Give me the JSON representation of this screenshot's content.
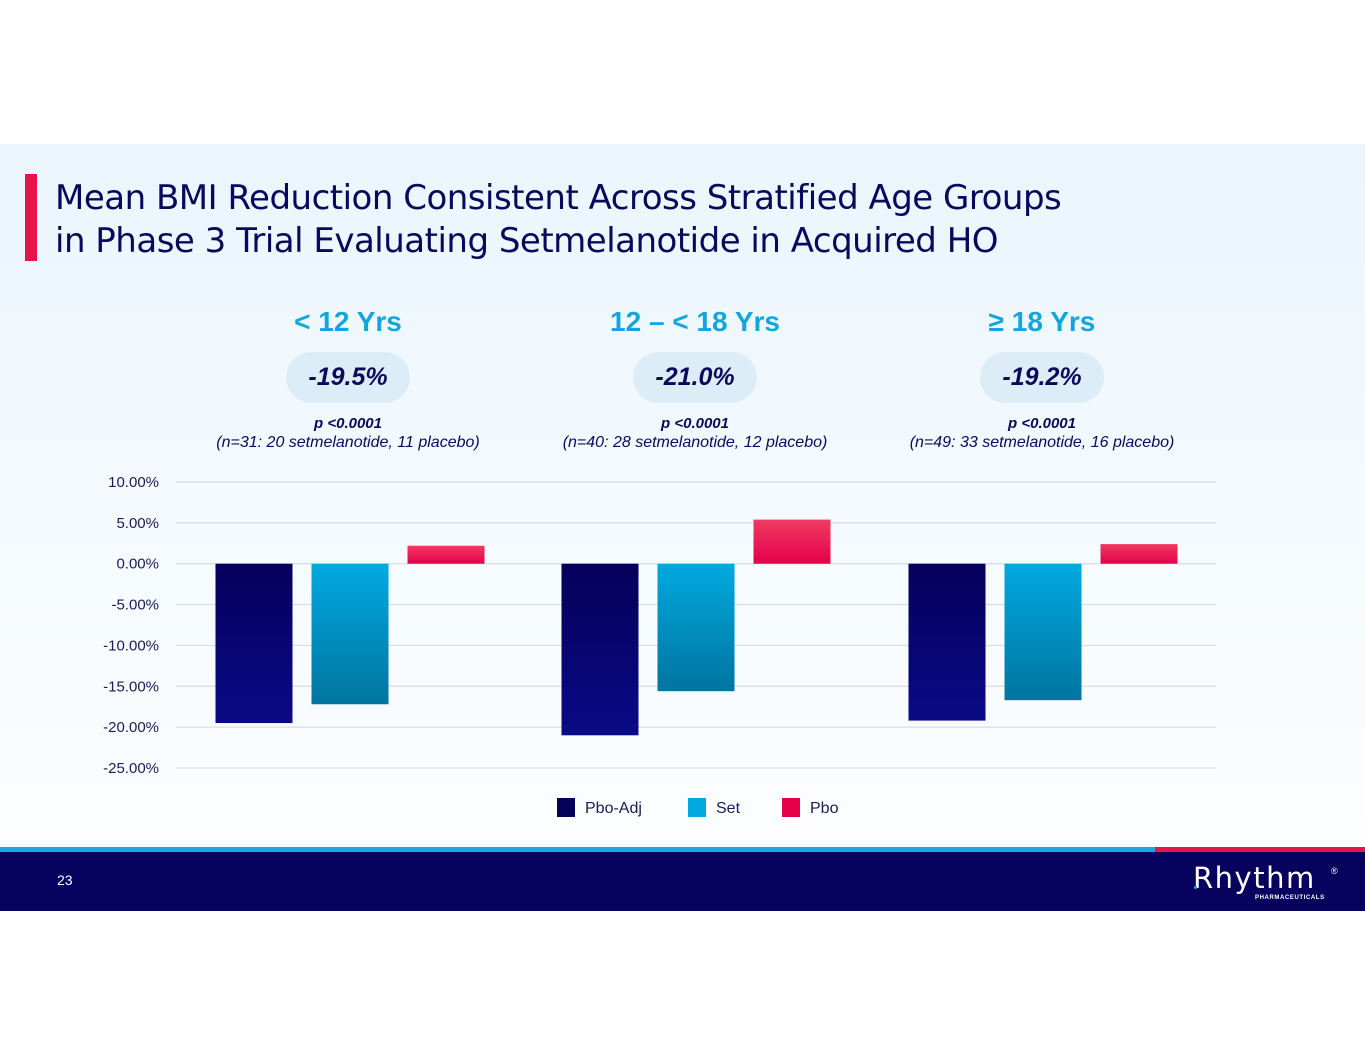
{
  "slide": {
    "title_lines": [
      "Mean BMI Reduction Consistent Across Stratified Age Groups",
      "in Phase 3 Trial Evaluating Setmelanotide in Acquired HO"
    ],
    "page_number": "23",
    "logo": {
      "name": "Rhythm",
      "registered": "®",
      "subtitle": "PHARMACEUTICALS"
    }
  },
  "groups": [
    {
      "age": "< 12 Yrs",
      "effect": "-19.5%",
      "p_value": "p <0.0001",
      "n_text": "(n=31: 20 setmelanotide, 11 placebo)"
    },
    {
      "age": "12 – < 18 Yrs",
      "effect": "-21.0%",
      "p_value": "p <0.0001",
      "n_text": "(n=40: 28 setmelanotide, 12 placebo)"
    },
    {
      "age": "≥ 18 Yrs",
      "effect": "-19.2%",
      "p_value": "p <0.0001",
      "n_text": "(n=49: 33 setmelanotide, 16 placebo)"
    }
  ],
  "colors": {
    "accent_red": "#e5144b",
    "accent_cyan": "#13a6dc",
    "navy": "#06025e",
    "pbo_adj": [
      "#05005a",
      "#0a0a86"
    ],
    "set": [
      "#00a9e0",
      "#00759f"
    ],
    "pbo": [
      "#f03a63",
      "#e5004a"
    ]
  },
  "chart_data": {
    "type": "bar",
    "title": "",
    "xlabel": "",
    "ylabel": "",
    "categories": [
      "< 12 Yrs",
      "12 – < 18 Yrs",
      "≥ 18 Yrs"
    ],
    "series": [
      {
        "name": "Pbo-Adj",
        "values": [
          -19.5,
          -21.0,
          -19.2
        ]
      },
      {
        "name": "Set",
        "values": [
          -17.2,
          -15.6,
          -16.7
        ]
      },
      {
        "name": "Pbo",
        "values": [
          2.2,
          5.4,
          2.4
        ]
      }
    ],
    "ylim": [
      -25,
      10
    ],
    "yticks": [
      10,
      5,
      0,
      -5,
      -10,
      -15,
      -20,
      -25
    ],
    "ytick_labels": [
      "10.00%",
      "5.00%",
      "0.00%",
      "-5.00%",
      "-10.00%",
      "-15.00%",
      "-20.00%",
      "-25.00%"
    ],
    "grid": true,
    "legend": {
      "placement": "bottom",
      "entries": [
        "Pbo-Adj",
        "Set",
        "Pbo"
      ]
    }
  }
}
